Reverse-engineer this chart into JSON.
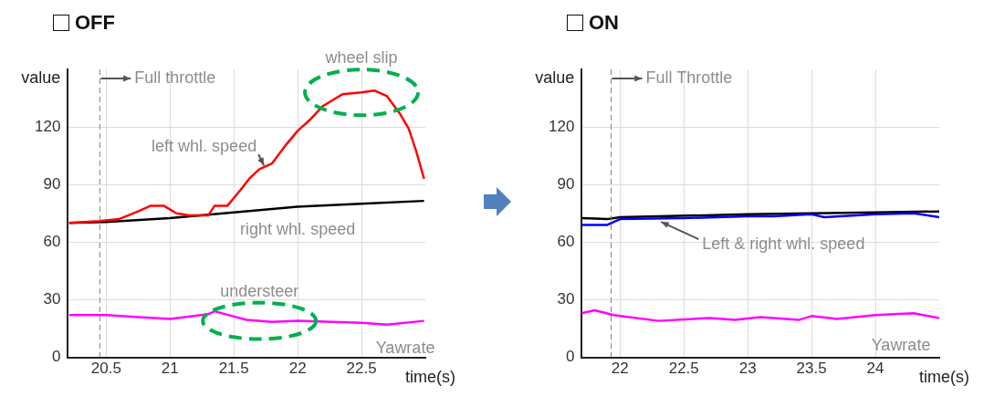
{
  "chart_data": [
    {
      "type": "line",
      "title": "OFF",
      "ylabel": "value",
      "xlabel": "time(s)",
      "xlim": [
        20.2,
        23
      ],
      "ylim": [
        0,
        150
      ],
      "xticks": [
        20.5,
        21,
        21.5,
        22,
        22.5
      ],
      "yticks": [
        0,
        30,
        60,
        90,
        120
      ],
      "grid": true,
      "legend": false,
      "marker": "none",
      "line_style": "solid",
      "series": [
        {
          "color": "#ff0000",
          "x": [
            20.21,
            20.45,
            20.6,
            20.75,
            20.85,
            20.95,
            21.05,
            21.15,
            21.3,
            21.35,
            21.45,
            21.55,
            21.62,
            21.7,
            21.8,
            21.9,
            22.0,
            22.1,
            22.2,
            22.35,
            22.5,
            22.6,
            22.7,
            22.8,
            22.87,
            22.93,
            22.99
          ],
          "values": [
            70,
            71,
            72,
            76,
            79,
            79,
            75,
            74,
            74,
            79,
            79,
            87,
            93,
            98,
            101,
            110,
            118,
            124,
            131,
            137,
            138,
            139,
            136,
            127,
            119,
            107,
            93
          ]
        },
        {
          "color": "#000000",
          "x": [
            20.21,
            20.5,
            21,
            21.5,
            22,
            22.5,
            22.99
          ],
          "values": [
            70,
            70.5,
            72.5,
            75.5,
            78.5,
            80,
            81.5
          ]
        },
        {
          "color": "#ff00ff",
          "x": [
            20.21,
            20.5,
            20.75,
            21,
            21.3,
            21.35,
            21.6,
            21.8,
            22,
            22.5,
            22.7,
            22.99
          ],
          "values": [
            22,
            22,
            21,
            20,
            22.5,
            24,
            19.5,
            18.5,
            19,
            18,
            17,
            19
          ]
        }
      ],
      "ref_lines": [
        {
          "axis": "x",
          "value": 20.45,
          "label": "Full throttle",
          "color": "#808080",
          "line_style": "dashed"
        }
      ],
      "annotations": [
        {
          "text": "wheel slip",
          "x": 22.5,
          "y": 138
        },
        {
          "text": "left whl. speed",
          "x": 21.75,
          "y": 99
        },
        {
          "text": "right whl. speed",
          "x": 22,
          "y": 78.5
        },
        {
          "text": "understeer",
          "x": 21.7,
          "y": 19
        },
        {
          "text": "Yawrate",
          "x": 22.7,
          "y": 17
        }
      ]
    },
    {
      "type": "line",
      "title": "ON",
      "ylabel": "value",
      "xlabel": "time(s)",
      "xlim": [
        21.7,
        24.5
      ],
      "ylim": [
        0,
        150
      ],
      "xticks": [
        22,
        22.5,
        23,
        23.5,
        24
      ],
      "yticks": [
        0,
        30,
        60,
        90,
        120
      ],
      "grid": true,
      "legend": false,
      "marker": "none",
      "line_style": "solid",
      "series": [
        {
          "color": "#0000ff",
          "x": [
            21.7,
            21.9,
            22.0,
            22.5,
            23,
            23.2,
            23.5,
            23.6,
            24,
            24.3,
            24.5
          ],
          "values": [
            69,
            69,
            72,
            72.5,
            73.5,
            73.5,
            74.5,
            73,
            74.5,
            75,
            73
          ]
        },
        {
          "color": "#000000",
          "x": [
            21.7,
            21.9,
            22,
            23,
            24,
            24.5
          ],
          "values": [
            72.5,
            72,
            73,
            74.5,
            75.5,
            76
          ]
        },
        {
          "color": "#ff00ff",
          "x": [
            21.7,
            21.8,
            21.95,
            22.3,
            22.7,
            22.9,
            23.1,
            23.4,
            23.5,
            23.7,
            24,
            24.3,
            24.5
          ],
          "values": [
            23,
            24.5,
            22,
            19,
            20.5,
            19.5,
            21,
            19.5,
            21.5,
            20,
            22,
            23,
            20.5
          ]
        }
      ],
      "ref_lines": [
        {
          "axis": "x",
          "value": 21.93,
          "label": "Full Throttle",
          "color": "#808080",
          "line_style": "dashed"
        }
      ],
      "annotations": [
        {
          "text": "Left & right whl. speed",
          "x": 22.3,
          "y": 72
        },
        {
          "text": "Yawrate",
          "x": 24.2,
          "y": 22
        }
      ]
    }
  ]
}
